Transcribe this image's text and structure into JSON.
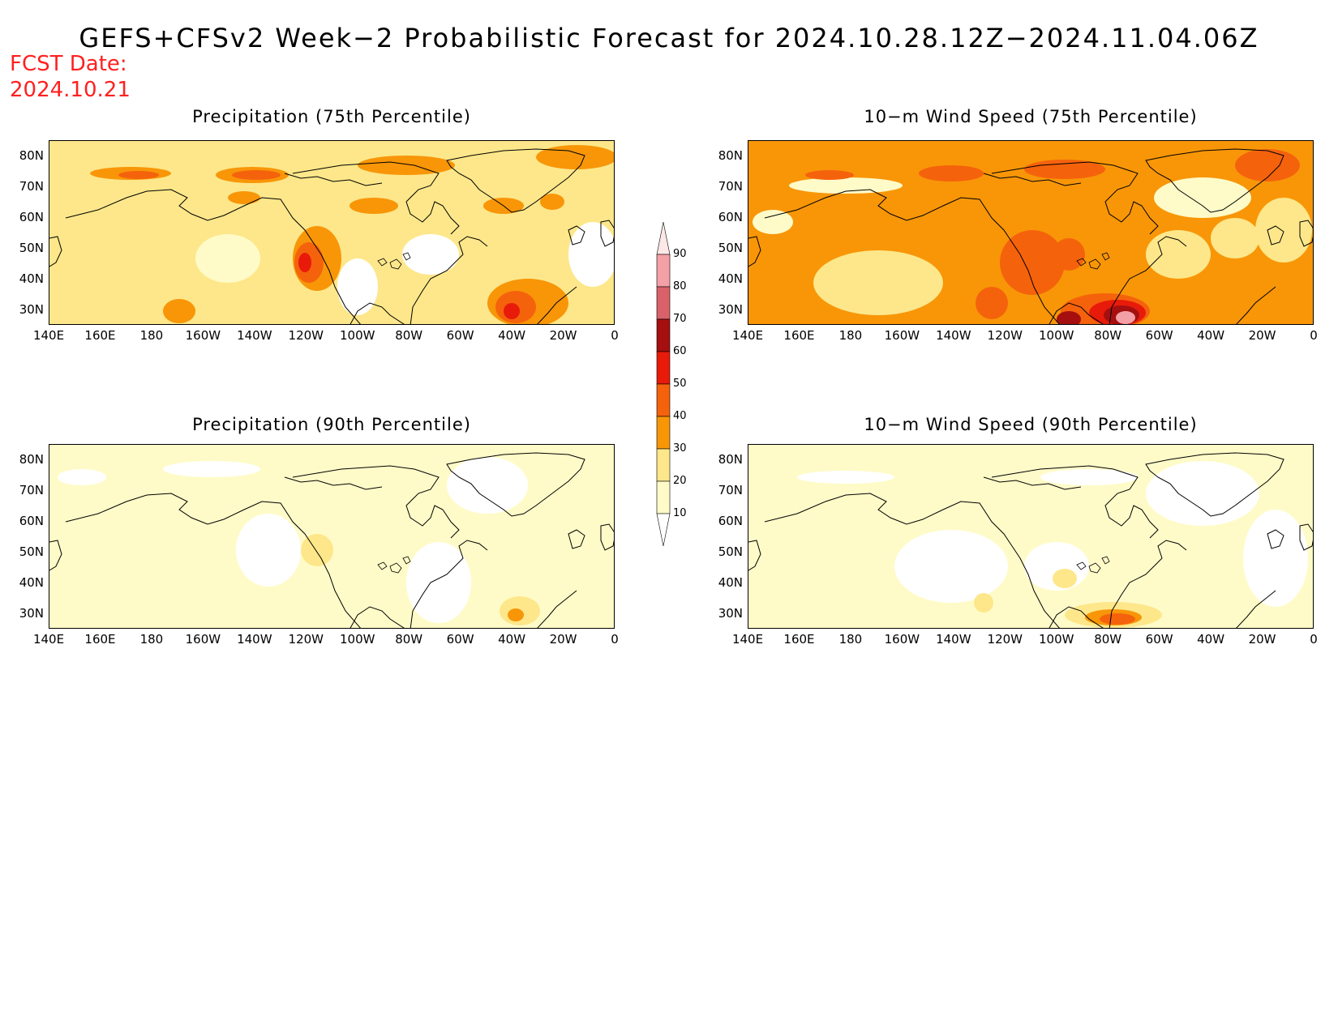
{
  "title": "GEFS+CFSv2 Week−2 Probabilistic Forecast for 2024.10.28.12Z−2024.11.04.06Z",
  "fcst_label": "FCST Date:",
  "fcst_date": "2024.10.21",
  "panels": [
    {
      "title": "Precipitation (75th Percentile)",
      "variable": "precipitation",
      "percentile": "75th"
    },
    {
      "title": "10−m Wind Speed (75th Percentile)",
      "variable": "wind",
      "percentile": "75th"
    },
    {
      "title": "Precipitation (90th Percentile)",
      "variable": "precipitation",
      "percentile": "90th"
    },
    {
      "title": "10−m Wind Speed (90th Percentile)",
      "variable": "wind",
      "percentile": "90th"
    }
  ],
  "x_ticks": [
    "140E",
    "160E",
    "180",
    "160W",
    "140W",
    "120W",
    "100W",
    "80W",
    "60W",
    "40W",
    "20W",
    "0"
  ],
  "y_ticks": [
    "80N",
    "70N",
    "60N",
    "50N",
    "40N",
    "30N"
  ],
  "colorbar": {
    "labels": [
      "90",
      "80",
      "70",
      "60",
      "50",
      "40",
      "30",
      "20",
      "10"
    ],
    "colors": [
      "#fde7e7",
      "#f3a0a6",
      "#d9626a",
      "#a50f0f",
      "#e81a0a",
      "#f5620c",
      "#f89608",
      "#fde78a",
      "#fffbc8"
    ]
  }
}
